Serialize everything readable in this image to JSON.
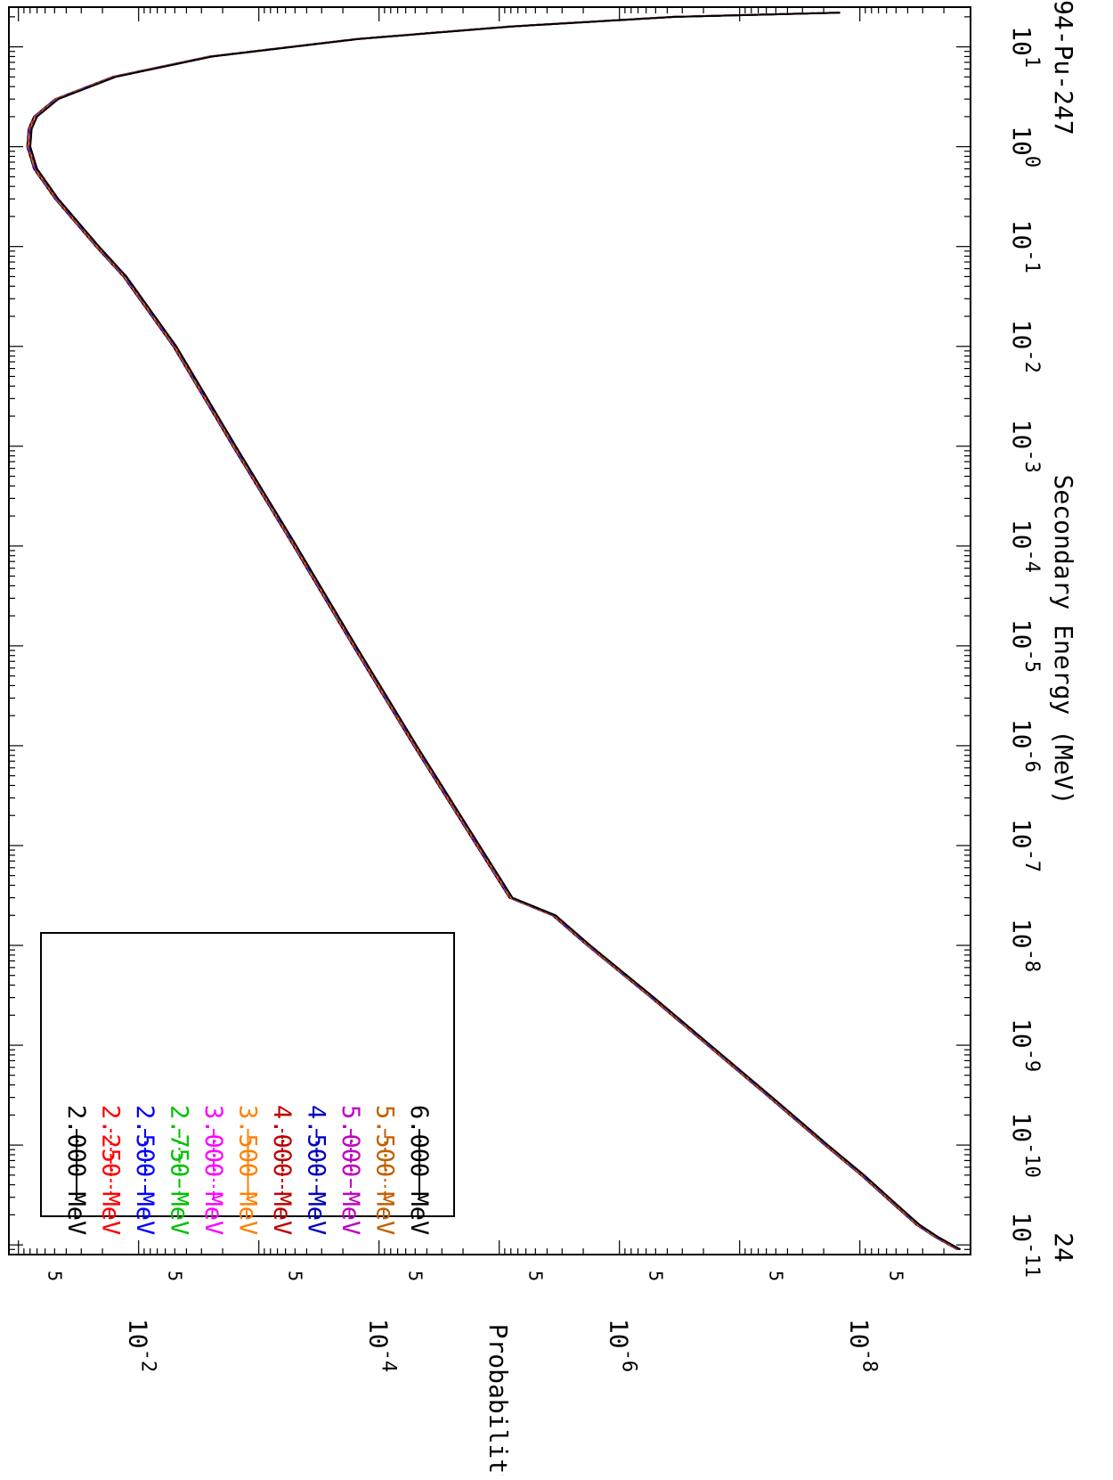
{
  "chart_data": {
    "type": "line",
    "orientation": "rotated-90-clockwise",
    "xlabel": "Secondary Energy (MeV)",
    "ylabel": "Probability/MeV",
    "x_scale": "log",
    "y_scale": "log",
    "xlim": [
      8e-12,
      25
    ],
    "ylim": [
      1.2e-09,
      0.12
    ],
    "x_ticks": [
      {
        "value": 1e-11,
        "base": "10",
        "exp": "-11"
      },
      {
        "value": 1e-10,
        "base": "10",
        "exp": "-10"
      },
      {
        "value": 1e-09,
        "base": "10",
        "exp": "-9"
      },
      {
        "value": 1e-08,
        "base": "10",
        "exp": "-8"
      },
      {
        "value": 1e-07,
        "base": "10",
        "exp": "-7"
      },
      {
        "value": 1e-06,
        "base": "10",
        "exp": "-6"
      },
      {
        "value": 1e-05,
        "base": "10",
        "exp": "-5"
      },
      {
        "value": 0.0001,
        "base": "10",
        "exp": "-4"
      },
      {
        "value": 0.001,
        "base": "10",
        "exp": "-3"
      },
      {
        "value": 0.01,
        "base": "10",
        "exp": "-2"
      },
      {
        "value": 0.1,
        "base": "10",
        "exp": "-1"
      },
      {
        "value": 1,
        "base": "10",
        "exp": "0"
      },
      {
        "value": 10,
        "base": "10",
        "exp": "1"
      }
    ],
    "y_ticks": [
      {
        "value": 0.01,
        "base": "10",
        "exp": "-2"
      },
      {
        "value": 0.0001,
        "base": "10",
        "exp": "-4"
      },
      {
        "value": 1e-06,
        "base": "10",
        "exp": "-6"
      },
      {
        "value": 1e-08,
        "base": "10",
        "exp": "-8"
      }
    ],
    "y_minor_labels": [
      {
        "value": 0.05,
        "label": "5"
      },
      {
        "value": 0.005,
        "label": "5"
      },
      {
        "value": 0.0005,
        "label": "5"
      },
      {
        "value": 5e-05,
        "label": "5"
      },
      {
        "value": 5e-06,
        "label": "5"
      },
      {
        "value": 5e-07,
        "label": "5"
      },
      {
        "value": 5e-08,
        "label": "5"
      },
      {
        "value": 5e-09,
        "label": "5"
      }
    ],
    "curve": {
      "x": [
        9e-12,
        1.2e-11,
        1.6e-11,
        2.5e-11,
        5e-11,
        1e-10,
        3e-10,
        1e-09,
        3e-09,
        1e-08,
        2e-08,
        2.5e-08,
        3e-08,
        1e-07,
        1e-06,
        1e-05,
        0.0001,
        0.001,
        0.01,
        0.05,
        0.1,
        0.3,
        0.6,
        1.0,
        1.5,
        2.0,
        3.0,
        5.0,
        8.0,
        12.0,
        16.0,
        20.0,
        22.0
      ],
      "y": [
        1.5e-09,
        2.3e-09,
        3.3e-09,
        5e-09,
        9.5e-09,
        1.9e-08,
        5.5e-08,
        1.8e-07,
        5.3e-07,
        1.8e-06,
        3.5e-06,
        5.5e-06,
        8e-06,
        1.5e-05,
        5e-05,
        0.00016,
        0.0005,
        0.0016,
        0.005,
        0.013,
        0.022,
        0.048,
        0.072,
        0.082,
        0.08,
        0.072,
        0.048,
        0.016,
        0.0025,
        0.00015,
        8e-06,
        3.5e-07,
        1.5e-08
      ]
    },
    "series": [
      {
        "name": "2.000 MeV",
        "color": "#000000",
        "dash": "none"
      },
      {
        "name": "2.250 MeV",
        "color": "#ff0000",
        "dash": "4,3"
      },
      {
        "name": "2.500 MeV",
        "color": "#0000ff",
        "dash": "10,4,3,4"
      },
      {
        "name": "2.750 MeV",
        "color": "#00c000",
        "dash": "10,4,3,4,3,4"
      },
      {
        "name": "3.000 MeV",
        "color": "#ff00ff",
        "dash": "10,4,3,4,3,4,3,4"
      },
      {
        "name": "3.500 MeV",
        "color": "#ff8000",
        "dash": "none"
      },
      {
        "name": "4.000 MeV",
        "color": "#c00000",
        "dash": "4,3"
      },
      {
        "name": "4.500 MeV",
        "color": "#0000c0",
        "dash": "10,4,3,4"
      },
      {
        "name": "5.000 MeV",
        "color": "#c000c0",
        "dash": "10,4,3,4,3,4"
      },
      {
        "name": "5.500 MeV",
        "color": "#c06000",
        "dash": "10,4,3,4,3,4,3,4"
      },
      {
        "name": "6.000 MeV",
        "color": "#000000",
        "dash": "none"
      }
    ],
    "legend": "upper-left (rotated frame)",
    "annotations": {
      "footer_left": "24",
      "footer_right": "94-Pu-247"
    }
  }
}
